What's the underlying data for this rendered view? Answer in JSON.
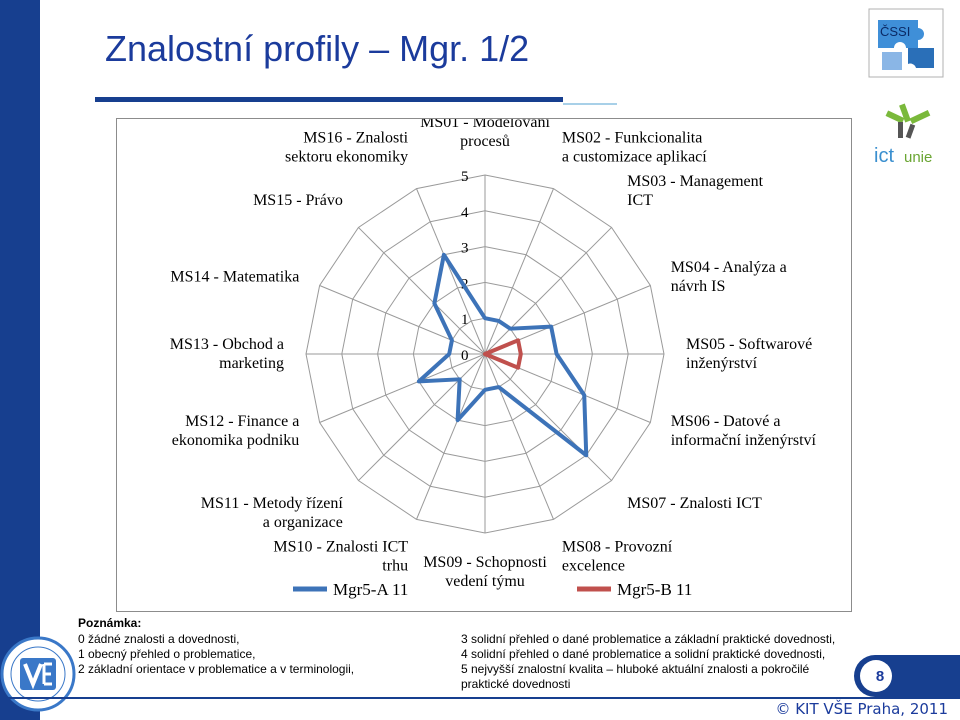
{
  "slide": {
    "title": "Znalostní profily – Mgr. 1/2",
    "page_number": "8",
    "footer": "© KIT VŠE Praha, 2011",
    "logo_cssi_text": "ČSSI",
    "logo_ict_text_ict": "ict",
    "logo_ict_text_unie": "unie"
  },
  "note": {
    "title": "Poznámka:",
    "left_lines": [
      "0 žádné znalosti a dovednosti,",
      "1 obecný přehled o problematice,",
      "2 základní orientace v problematice a v terminologii,"
    ],
    "right_lines": [
      "3 solidní přehled o dané problematice a základní praktické dovednosti,",
      "4 solidní přehled o dané problematice a solidní praktické dovednosti,",
      "5 nejvyšší znalostní kvalita – hluboké aktuální znalosti a pokročilé",
      "praktické dovednosti"
    ]
  },
  "colors": {
    "series_a": "#3d73b8",
    "series_b": "#c0504d",
    "grid": "#9a9a9a",
    "brand": "#173f8f",
    "title": "#1b3b9c"
  },
  "chart_data": {
    "type": "radar",
    "title": "",
    "rlim": [
      0,
      5
    ],
    "ticks": [
      "0",
      "1",
      "2",
      "3",
      "4",
      "5"
    ],
    "axes": [
      [
        "MS01 - Modelování",
        "procesů"
      ],
      [
        "MS02 - Funkcionalita",
        "a customizace aplikací"
      ],
      [
        "MS03 - Management",
        "ICT"
      ],
      [
        "MS04 - Analýza a",
        "návrh IS"
      ],
      [
        "MS05 - Softwarové",
        "inženýrství"
      ],
      [
        "MS06 - Datové a",
        "informační inženýrství"
      ],
      [
        "MS07 - Znalosti ICT"
      ],
      [
        "MS08 - Provozní",
        "excelence"
      ],
      [
        "MS09 - Schopnosti",
        "vedení týmu"
      ],
      [
        "MS10 - Znalosti ICT",
        "trhu"
      ],
      [
        "MS11 - Metody řízení",
        "a organizace"
      ],
      [
        "MS12 - Finance a",
        "ekonomika podniku"
      ],
      [
        "MS13 - Obchod a",
        "marketing"
      ],
      [
        "MS14 - Matematika"
      ],
      [
        "MS15 - Právo"
      ],
      [
        "MS16 - Znalosti",
        "sektoru ekonomiky"
      ]
    ],
    "series": [
      {
        "name": "Mgr5-A 11",
        "values": [
          1,
          1,
          1,
          2,
          2,
          3,
          4,
          1,
          1,
          2,
          1,
          2,
          1,
          1,
          2,
          3
        ]
      },
      {
        "name": "Mgr5-B 11",
        "values": [
          0,
          0,
          0,
          1,
          1,
          1,
          0,
          0,
          0,
          0,
          0,
          0,
          0,
          0,
          0,
          0
        ]
      }
    ],
    "legend_position": "bottom"
  }
}
